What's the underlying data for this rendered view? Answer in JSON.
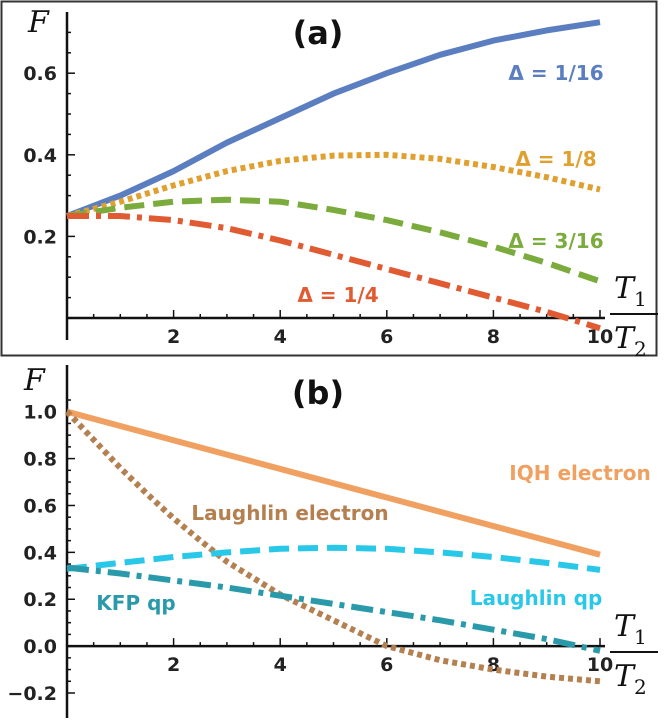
{
  "chart_data": [
    {
      "type": "line",
      "title": "(a)",
      "ylabel": "F",
      "xlabel": "T1 / T2",
      "xlim": [
        0,
        10
      ],
      "ylim": [
        0,
        0.75
      ],
      "xticks": [
        "2",
        "4",
        "6",
        "8",
        "10"
      ],
      "yticks": [
        "0.2",
        "0.4",
        "0.6"
      ],
      "series": [
        {
          "name": "Δ = 1/16",
          "color": "#5b7ec0",
          "dash": "solid",
          "x": [
            0,
            1,
            2,
            3,
            4,
            5,
            6,
            7,
            8,
            9,
            10
          ],
          "y": [
            0.25,
            0.3,
            0.36,
            0.43,
            0.49,
            0.55,
            0.6,
            0.645,
            0.68,
            0.705,
            0.725
          ]
        },
        {
          "name": "Δ = 1/8",
          "color": "#e0a030",
          "dash": "dotted",
          "x": [
            0,
            1,
            2,
            3,
            4,
            5,
            6,
            7,
            8,
            9,
            10
          ],
          "y": [
            0.25,
            0.285,
            0.325,
            0.36,
            0.385,
            0.398,
            0.4,
            0.39,
            0.37,
            0.345,
            0.315
          ]
        },
        {
          "name": "Δ = 3/16",
          "color": "#7aab3c",
          "dash": "dashed",
          "x": [
            0,
            1,
            2,
            3,
            4,
            5,
            6,
            7,
            8,
            9,
            10
          ],
          "y": [
            0.25,
            0.27,
            0.285,
            0.29,
            0.285,
            0.265,
            0.24,
            0.21,
            0.175,
            0.135,
            0.09
          ]
        },
        {
          "name": "Δ = 1/4",
          "color": "#e05a32",
          "dash": "dashdot",
          "x": [
            0,
            1,
            2,
            3,
            4,
            5,
            6,
            7,
            8,
            9,
            10
          ],
          "y": [
            0.25,
            0.25,
            0.24,
            0.22,
            0.19,
            0.155,
            0.12,
            0.085,
            0.05,
            0.015,
            -0.025
          ]
        }
      ],
      "annotations": [
        {
          "text": "Δ = 1/16",
          "color": "#5b7ec0"
        },
        {
          "text": "Δ = 1/8",
          "color": "#e0a030"
        },
        {
          "text": "Δ = 3/16",
          "color": "#7aab3c"
        },
        {
          "text": "Δ = 1/4",
          "color": "#e05a32"
        }
      ]
    },
    {
      "type": "line",
      "title": "(b)",
      "ylabel": "F",
      "xlabel": "T1 / T2",
      "xlim": [
        0,
        10
      ],
      "ylim": [
        -0.2,
        1.05
      ],
      "xticks": [
        "2",
        "4",
        "6",
        "8",
        "10"
      ],
      "yticks": [
        "-0.2",
        "0.0",
        "0.2",
        "0.4",
        "0.6",
        "0.8",
        "1.0"
      ],
      "series": [
        {
          "name": "IQH electron",
          "color": "#f0a060",
          "dash": "solid",
          "x": [
            0,
            10
          ],
          "y": [
            1.0,
            0.39
          ]
        },
        {
          "name": "Laughlin electron",
          "color": "#b58050",
          "dash": "dotted",
          "x": [
            0,
            0.5,
            1,
            1.5,
            2,
            2.5,
            3,
            4,
            5,
            6,
            7,
            8,
            9,
            10
          ],
          "y": [
            1.0,
            0.88,
            0.76,
            0.65,
            0.545,
            0.45,
            0.36,
            0.22,
            0.11,
            0.0,
            -0.06,
            -0.1,
            -0.13,
            -0.15
          ]
        },
        {
          "name": "Laughlin qp",
          "color": "#2ac8e8",
          "dash": "dashed",
          "x": [
            0,
            1,
            2,
            3,
            4,
            5,
            6,
            7,
            8,
            9,
            10
          ],
          "y": [
            0.33,
            0.355,
            0.38,
            0.4,
            0.415,
            0.42,
            0.415,
            0.4,
            0.38,
            0.355,
            0.325
          ]
        },
        {
          "name": "KFP qp",
          "color": "#2a9aaa",
          "dash": "dashdot",
          "x": [
            0,
            1,
            2,
            3,
            4,
            5,
            6,
            7,
            8,
            9,
            10
          ],
          "y": [
            0.335,
            0.31,
            0.28,
            0.25,
            0.215,
            0.18,
            0.145,
            0.11,
            0.07,
            0.03,
            -0.02
          ]
        }
      ],
      "annotations": [
        {
          "text": "IQH electron",
          "color": "#f0a060"
        },
        {
          "text": "Laughlin electron",
          "color": "#b58050"
        },
        {
          "text": "Laughlin qp",
          "color": "#2ac8e8"
        },
        {
          "text": "KFP qp",
          "color": "#2a9aaa"
        }
      ]
    }
  ]
}
